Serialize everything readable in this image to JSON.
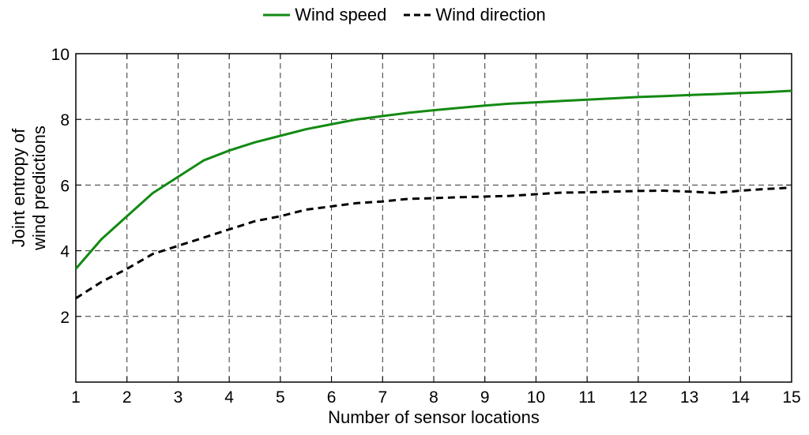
{
  "chart_data": {
    "type": "line",
    "xlabel": "Number of sensor locations",
    "ylabel_lines": [
      "Joint entropy of",
      "wind predictions"
    ],
    "xlim": [
      1,
      15
    ],
    "ylim": [
      0,
      10
    ],
    "xticks": [
      1,
      2,
      3,
      4,
      5,
      6,
      7,
      8,
      9,
      10,
      11,
      12,
      13,
      14,
      15
    ],
    "yticks": [
      2,
      4,
      6,
      8,
      10
    ],
    "grid": true,
    "legend_position": "top-center",
    "series": [
      {
        "name": "Wind speed",
        "color": "#138a13",
        "style": "solid",
        "x": [
          1,
          1.5,
          2,
          2.5,
          3,
          3.5,
          4,
          4.5,
          5,
          5.5,
          6,
          6.5,
          7,
          7.5,
          8,
          8.5,
          9,
          9.5,
          10,
          10.5,
          11,
          11.5,
          12,
          12.5,
          13,
          13.5,
          14,
          14.5,
          15
        ],
        "y": [
          3.45,
          4.35,
          5.05,
          5.75,
          6.25,
          6.75,
          7.05,
          7.3,
          7.5,
          7.7,
          7.85,
          8.0,
          8.1,
          8.2,
          8.28,
          8.35,
          8.42,
          8.48,
          8.52,
          8.56,
          8.6,
          8.64,
          8.68,
          8.71,
          8.74,
          8.77,
          8.8,
          8.83,
          8.87
        ]
      },
      {
        "name": "Wind direction",
        "color": "#000000",
        "style": "dashed",
        "x": [
          1,
          1.5,
          2,
          2.5,
          3,
          3.5,
          4,
          4.5,
          5,
          5.5,
          6,
          6.5,
          7,
          7.5,
          8,
          8.5,
          9,
          9.5,
          10,
          10.5,
          11,
          11.5,
          12,
          12.5,
          13,
          13.5,
          14,
          14.5,
          15
        ],
        "y": [
          2.55,
          3.05,
          3.45,
          3.9,
          4.15,
          4.4,
          4.65,
          4.9,
          5.05,
          5.25,
          5.35,
          5.45,
          5.5,
          5.58,
          5.6,
          5.63,
          5.65,
          5.67,
          5.72,
          5.77,
          5.78,
          5.8,
          5.82,
          5.83,
          5.8,
          5.76,
          5.83,
          5.88,
          5.92
        ]
      }
    ]
  }
}
